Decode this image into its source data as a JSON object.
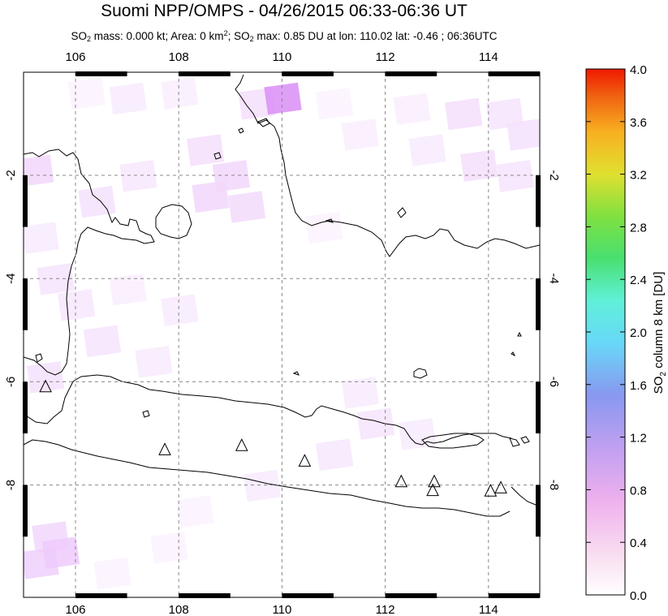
{
  "header": {
    "title": "Suomi NPP/OMPS - 04/26/2015 06:33-06:36 UT",
    "subtitle": {
      "p1": "SO",
      "p2": "2",
      "p3": " mass: 0.000 kt; Area: 0 km",
      "p4": "2",
      "p5": "; SO",
      "p6": "2",
      "p7": " max: 0.85 DU at lon: 110.02 lat: -0.46 ; 06:36UTC"
    }
  },
  "colorbar": {
    "label_parts": [
      "SO",
      "2",
      " column 8 km [DU]"
    ],
    "ticks": [
      "0.0",
      "0.4",
      "0.8",
      "1.2",
      "1.6",
      "2.0",
      "2.4",
      "2.8",
      "3.2",
      "3.6",
      "4.0"
    ],
    "range": [
      0,
      4
    ],
    "colors": [
      "#ffffff",
      "#f8d8f0",
      "#e8a8f0",
      "#b8a0f0",
      "#8090f0",
      "#60e0f8",
      "#60f0c0",
      "#40e040",
      "#c0e040",
      "#f0d020",
      "#f08010",
      "#f02000"
    ]
  },
  "chart_data": {
    "type": "map",
    "xlim": [
      105,
      115
    ],
    "ylim": [
      -10,
      0
    ],
    "x_ticks": [
      106,
      108,
      110,
      112,
      114
    ],
    "x_tick_labels": [
      "106",
      "108",
      "110",
      "112",
      "114"
    ],
    "y_ticks": [
      -2,
      -4,
      -6,
      -8
    ],
    "y_tick_labels": [
      "-2",
      "-4",
      "-6",
      "-8"
    ],
    "grid": true,
    "volcanoes": [
      {
        "lon": 105.42,
        "lat": -6.1
      },
      {
        "lon": 107.73,
        "lat": -7.32
      },
      {
        "lon": 109.22,
        "lat": -7.24
      },
      {
        "lon": 110.44,
        "lat": -7.54
      },
      {
        "lon": 112.31,
        "lat": -7.94
      },
      {
        "lon": 112.95,
        "lat": -7.94
      },
      {
        "lon": 112.92,
        "lat": -8.11
      },
      {
        "lon": 114.04,
        "lat": -8.12
      },
      {
        "lon": 114.24,
        "lat": -8.06
      }
    ],
    "so2_cells_du": [
      [
        106.2,
        -0.4,
        0.1
      ],
      [
        107.0,
        -0.5,
        0.15
      ],
      [
        108.0,
        -0.4,
        0.12
      ],
      [
        109.5,
        -0.6,
        0.25
      ],
      [
        110.0,
        -0.5,
        0.85
      ],
      [
        111.0,
        -0.6,
        0.1
      ],
      [
        112.5,
        -0.7,
        0.12
      ],
      [
        113.5,
        -0.8,
        0.25
      ],
      [
        114.3,
        -0.8,
        0.2
      ],
      [
        114.7,
        -1.2,
        0.22
      ],
      [
        113.8,
        -1.8,
        0.25
      ],
      [
        114.5,
        -2.0,
        0.2
      ],
      [
        112.8,
        -1.5,
        0.15
      ],
      [
        111.5,
        -1.2,
        0.12
      ],
      [
        108.5,
        -1.5,
        0.25
      ],
      [
        109.0,
        -2.0,
        0.3
      ],
      [
        108.6,
        -2.4,
        0.3
      ],
      [
        109.3,
        -2.6,
        0.28
      ],
      [
        107.2,
        -2.0,
        0.18
      ],
      [
        106.4,
        -2.5,
        0.22
      ],
      [
        105.2,
        -1.9,
        0.3
      ],
      [
        105.3,
        -3.2,
        0.15
      ],
      [
        105.6,
        -4.0,
        0.2
      ],
      [
        106.0,
        -4.5,
        0.18
      ],
      [
        107.0,
        -4.2,
        0.12
      ],
      [
        108.0,
        -4.6,
        0.15
      ],
      [
        106.5,
        -5.2,
        0.2
      ],
      [
        107.5,
        -5.6,
        0.15
      ],
      [
        105.4,
        -5.9,
        0.22
      ],
      [
        110.8,
        -3.0,
        0.1
      ],
      [
        111.5,
        -6.2,
        0.15
      ],
      [
        111.8,
        -6.8,
        0.2
      ],
      [
        112.6,
        -7.0,
        0.15
      ],
      [
        111.0,
        -7.4,
        0.18
      ],
      [
        109.6,
        -8.0,
        0.15
      ],
      [
        108.3,
        -8.5,
        0.1
      ],
      [
        105.5,
        -9.0,
        0.3
      ],
      [
        105.3,
        -9.5,
        0.35
      ],
      [
        106.7,
        -9.7,
        0.1
      ],
      [
        107.8,
        -9.2,
        0.1
      ],
      [
        105.7,
        -9.3,
        0.4
      ]
    ]
  }
}
